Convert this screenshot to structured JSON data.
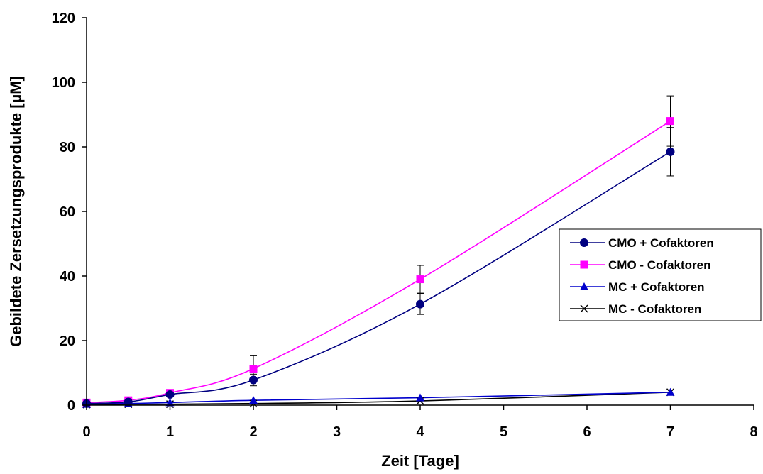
{
  "chart_data": {
    "type": "line",
    "title": "",
    "xlabel": "Zeit [Tage]",
    "ylabel": "Gebildete Zersetzungsprodukte [µM]",
    "xlim": [
      0,
      8
    ],
    "ylim": [
      0,
      120
    ],
    "x_ticks": [
      0,
      1,
      2,
      3,
      4,
      5,
      6,
      7,
      8
    ],
    "y_ticks": [
      0,
      20,
      40,
      60,
      80,
      100,
      120
    ],
    "grid": false,
    "legend_position": "right",
    "series": [
      {
        "name": "CMO + Cofaktoren",
        "color": "#000080",
        "marker": "circle",
        "x": [
          0,
          0.5,
          1,
          2,
          4,
          7
        ],
        "y": [
          0.5,
          1.0,
          3.3,
          7.8,
          31.3,
          78.5
        ],
        "error": [
          0,
          0,
          0.5,
          1.8,
          3.2,
          7.5
        ]
      },
      {
        "name": "CMO - Cofaktoren",
        "color": "#ff00ff",
        "marker": "square",
        "x": [
          0,
          0.5,
          1,
          2,
          4,
          7
        ],
        "y": [
          0.8,
          1.5,
          3.8,
          11.3,
          39.0,
          88.0
        ],
        "error": [
          0,
          0,
          0.5,
          4.0,
          4.3,
          7.8
        ]
      },
      {
        "name": "MC + Cofaktoren",
        "color": "#0000cc",
        "marker": "triangle",
        "x": [
          0,
          0.5,
          1,
          2,
          4,
          7
        ],
        "y": [
          0.3,
          0.5,
          0.8,
          1.5,
          2.3,
          4.0
        ],
        "error": [
          0,
          0,
          0,
          0,
          0,
          0
        ]
      },
      {
        "name": "MC - Cofaktoren",
        "color": "#000000",
        "marker": "x",
        "x": [
          0,
          0.5,
          1,
          2,
          4,
          7
        ],
        "y": [
          0.2,
          0.3,
          0.3,
          0.5,
          1.3,
          4.0
        ],
        "error": [
          0,
          0,
          0,
          0,
          0,
          0
        ]
      }
    ]
  }
}
